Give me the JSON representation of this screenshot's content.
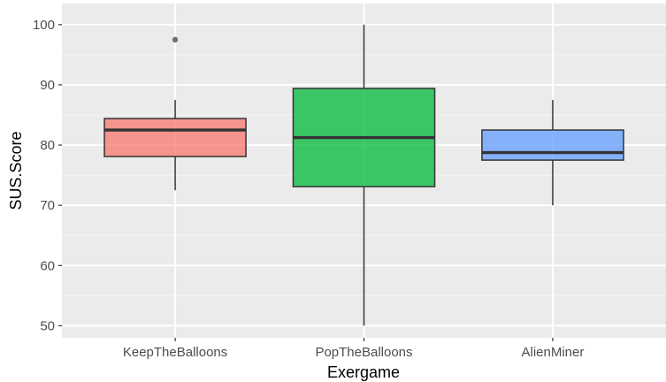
{
  "chart_data": {
    "type": "box",
    "title": "",
    "xlabel": "Exergame",
    "ylabel": "SUS.Score",
    "categories": [
      "KeepTheBalloons",
      "PopTheBalloons",
      "AlienMiner"
    ],
    "ylim": [
      48,
      103.5
    ],
    "yticks": [
      50,
      60,
      70,
      80,
      90,
      100
    ],
    "grid": true,
    "legend": "none",
    "boxes": [
      {
        "category": "KeepTheBalloons",
        "min": 72.5,
        "q1": 78.1,
        "median": 82.5,
        "q3": 84.4,
        "max": 87.5,
        "outliers": [
          97.5
        ],
        "color": "#f8766d"
      },
      {
        "category": "PopTheBalloons",
        "min": 50.0,
        "q1": 73.1,
        "median": 81.25,
        "q3": 89.4,
        "max": 100.0,
        "outliers": [],
        "color": "#00ba38"
      },
      {
        "category": "AlienMiner",
        "min": 70.0,
        "q1": 77.5,
        "median": 78.75,
        "q3": 82.5,
        "max": 87.5,
        "outliers": [],
        "color": "#619cff"
      }
    ],
    "colors": {
      "panel_background": "#ebebeb",
      "grid_major": "#ffffff",
      "box_outline": "#333333",
      "outlier": "#707070"
    }
  }
}
